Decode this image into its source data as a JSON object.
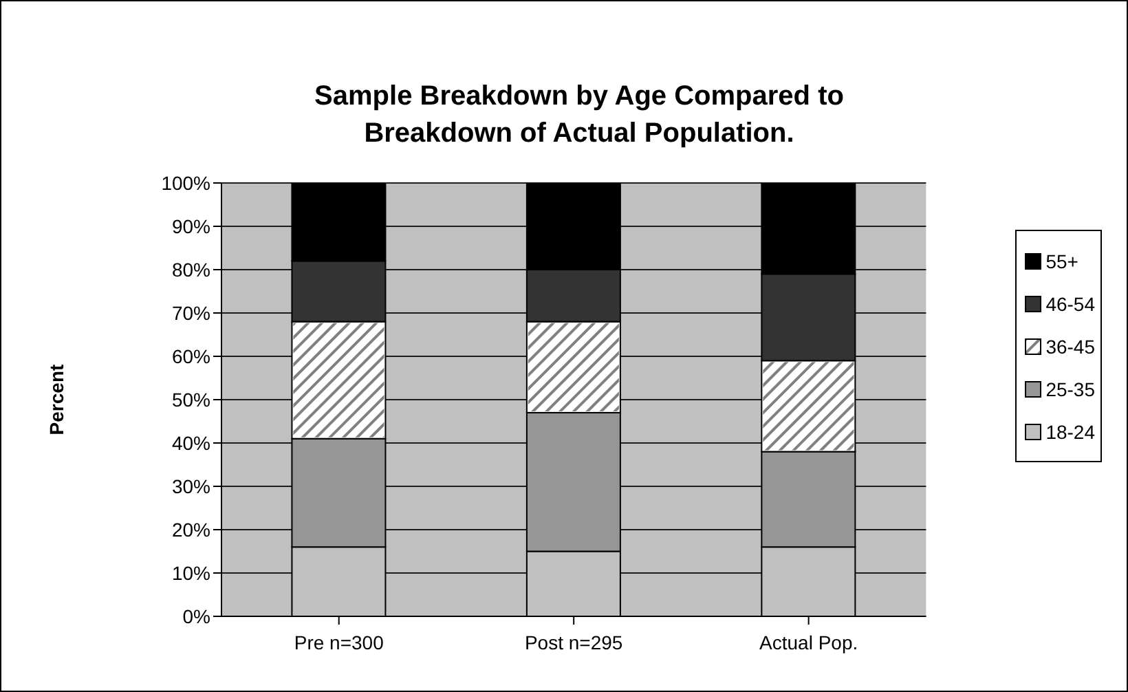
{
  "chart_data": {
    "type": "bar",
    "title": "Sample Breakdown by Age Compared to Breakdown of Actual Population.",
    "ylabel": "Percent",
    "categories": [
      "Pre n=300",
      "Post n=295",
      "Actual Pop."
    ],
    "stacked": true,
    "series": [
      {
        "name": "18-24",
        "color": "#c0c0c0",
        "values": [
          16,
          15,
          16
        ]
      },
      {
        "name": "25-35",
        "color": "#969696",
        "values": [
          25,
          32,
          22
        ]
      },
      {
        "name": "36-45",
        "color": "#ffffff",
        "values": [
          27,
          21,
          21
        ]
      },
      {
        "name": "46-54",
        "color": "#333333",
        "values": [
          14,
          12,
          20
        ]
      },
      {
        "name": "55+",
        "color": "#000000",
        "values": [
          18,
          20,
          21
        ]
      }
    ],
    "ylim": [
      0,
      100
    ],
    "yticks": [
      {
        "value": 0,
        "label": "0%"
      },
      {
        "value": 10,
        "label": "10%"
      },
      {
        "value": 20,
        "label": "20%"
      },
      {
        "value": 30,
        "label": "30%"
      },
      {
        "value": 40,
        "label": "40%"
      },
      {
        "value": 50,
        "label": "50%"
      },
      {
        "value": 60,
        "label": "60%"
      },
      {
        "value": 70,
        "label": "70%"
      },
      {
        "value": 80,
        "label": "80%"
      },
      {
        "value": 90,
        "label": "90%"
      },
      {
        "value": 100,
        "label": "100%"
      }
    ],
    "grid": "y",
    "legend": "right"
  }
}
